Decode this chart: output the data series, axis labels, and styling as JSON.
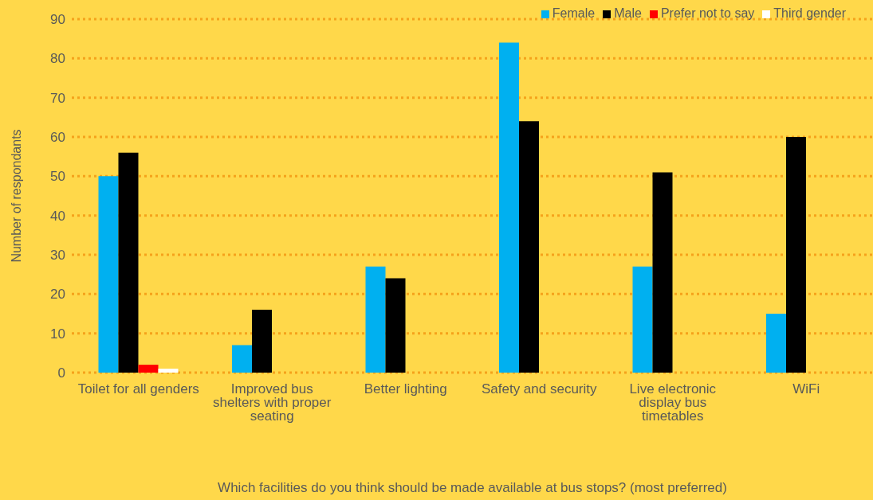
{
  "chart_data": {
    "type": "bar",
    "xlabel": "Which facilities do you think should be made available at bus stops? (most preferred)",
    "ylabel": "Number of respondants",
    "categories": [
      "Toilet for all genders",
      "Improved bus shelters with proper seating",
      "Better lighting",
      "Safety and security",
      "Live electronic display bus timetables",
      "WiFi"
    ],
    "series": [
      {
        "name": "Female",
        "color": "#00b0f0",
        "values": [
          50,
          7,
          27,
          84,
          27,
          15
        ]
      },
      {
        "name": "Male",
        "color": "#000000",
        "values": [
          56,
          16,
          24,
          64,
          51,
          60
        ]
      },
      {
        "name": "Prefer not to say",
        "color": "#ff0000",
        "values": [
          2,
          0,
          0,
          0,
          0,
          0
        ]
      },
      {
        "name": "Third gender",
        "color": "#ffffff",
        "values": [
          1,
          0,
          0,
          0,
          0,
          0
        ]
      }
    ],
    "ylim": [
      0,
      90
    ],
    "yticks": [
      0,
      10,
      20,
      30,
      40,
      50,
      60,
      70,
      80,
      90
    ],
    "grid": "y",
    "legend": "top right"
  }
}
